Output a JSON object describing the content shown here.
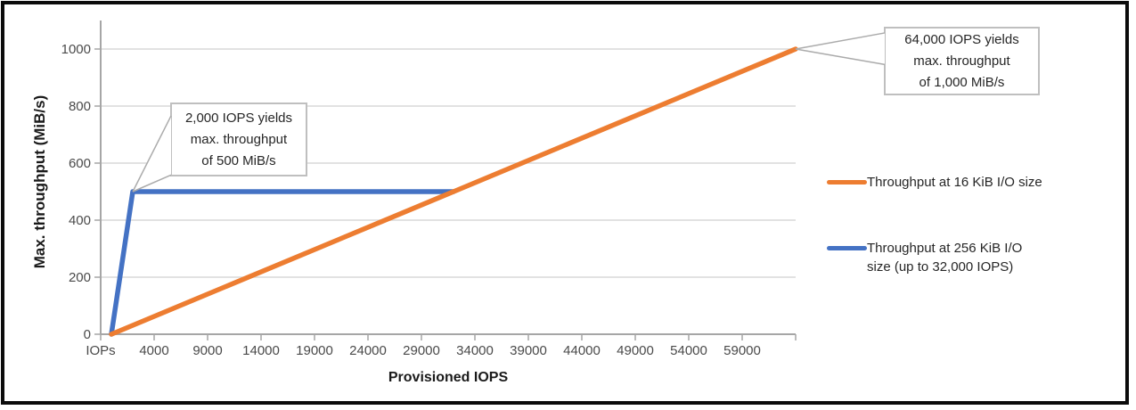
{
  "chart_data": {
    "type": "line",
    "title": "",
    "xlabel": "Provisioned IOPS",
    "ylabel": "Max. throughput (MiB/s)",
    "xlim": [
      -1000,
      64000
    ],
    "ylim": [
      0,
      1100
    ],
    "grid": true,
    "legend_position": "right",
    "x_ticks": [
      {
        "value": -1000,
        "label": "IOPs"
      },
      {
        "value": 4000,
        "label": "4000"
      },
      {
        "value": 9000,
        "label": "9000"
      },
      {
        "value": 14000,
        "label": "14000"
      },
      {
        "value": 19000,
        "label": "19000"
      },
      {
        "value": 24000,
        "label": "24000"
      },
      {
        "value": 29000,
        "label": "29000"
      },
      {
        "value": 34000,
        "label": "34000"
      },
      {
        "value": 39000,
        "label": "39000"
      },
      {
        "value": 44000,
        "label": "44000"
      },
      {
        "value": 49000,
        "label": "49000"
      },
      {
        "value": 54000,
        "label": "54000"
      },
      {
        "value": 59000,
        "label": "59000"
      },
      {
        "value": 64000,
        "label": ""
      }
    ],
    "y_ticks": [
      0,
      200,
      400,
      600,
      800,
      1000
    ],
    "series": [
      {
        "name": "Throughput at 16 KiB I/O size",
        "color": "#ED7D31",
        "points": [
          [
            0,
            0
          ],
          [
            64000,
            1000
          ]
        ]
      },
      {
        "name": "Throughput at 256 KiB I/O size (up to 32,000 IOPS)",
        "color": "#4472C4",
        "points": [
          [
            0,
            0
          ],
          [
            2000,
            500
          ],
          [
            32000,
            500
          ]
        ]
      }
    ],
    "annotations": [
      {
        "id": "callout-2000",
        "text": "2,000 IOPS yields\nmax. throughput\nof 500 MiB/s",
        "anchor_x": 2000,
        "anchor_y": 500
      },
      {
        "id": "callout-64000",
        "text": "64,000 IOPS yields\nmax. throughput\nof 1,000 MiB/s",
        "anchor_x": 64000,
        "anchor_y": 1000
      }
    ]
  },
  "legend": {
    "entries": [
      {
        "label": "Throughput at 16 KiB I/O size",
        "color": "#ED7D31"
      },
      {
        "label": "Throughput at 256 KiB I/O\nsize (up to 32,000 IOPS)",
        "color": "#4472C4"
      }
    ]
  },
  "colors": {
    "frame": "#0b0b0b",
    "grid": "#D9D9D9",
    "axis": "#A6A6A6",
    "tick_label": "#4a4a4a",
    "callout_border": "#BFBFBF",
    "leader_line": "#ABABAB"
  }
}
